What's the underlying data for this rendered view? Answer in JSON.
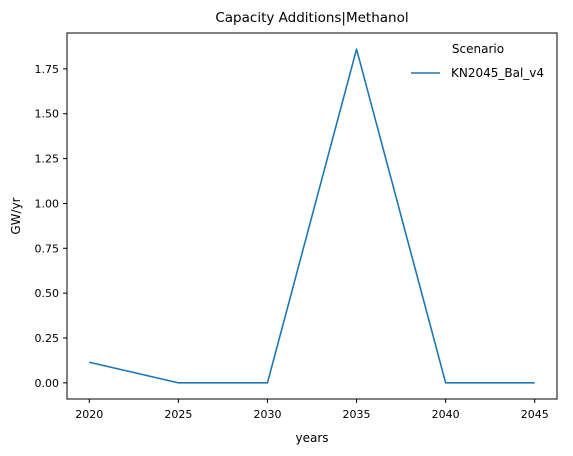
{
  "chart_data": {
    "type": "line",
    "title": "Capacity Additions|Methanol",
    "xlabel": "years",
    "ylabel": "GW/yr",
    "x": [
      2020,
      2025,
      2030,
      2035,
      2040,
      2045
    ],
    "xticks": [
      "2020",
      "2025",
      "2030",
      "2035",
      "2040",
      "2045"
    ],
    "yticks": [
      "0.00",
      "0.25",
      "0.50",
      "0.75",
      "1.00",
      "1.25",
      "1.50",
      "1.75"
    ],
    "ylim": [
      -0.09,
      1.95
    ],
    "xlim": [
      2018.75,
      2046.25
    ],
    "grid": false,
    "legend": {
      "title": "Scenario",
      "placement": "top-right"
    },
    "series": [
      {
        "name": "KN2045_Bal_v4",
        "color": "#1f77b4",
        "values": [
          0.115,
          0.0,
          0.0,
          1.86,
          0.0,
          0.0
        ]
      }
    ]
  }
}
